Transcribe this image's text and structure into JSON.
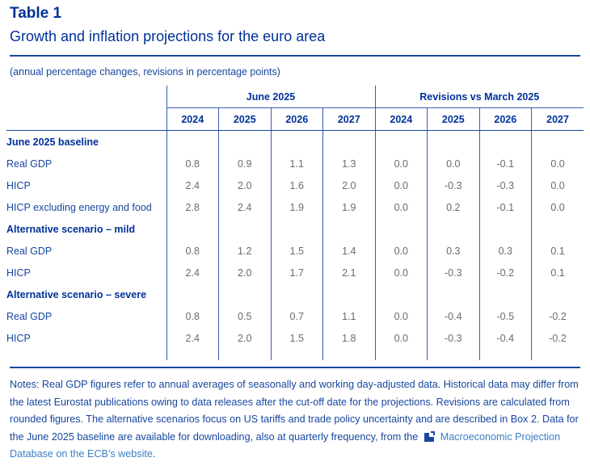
{
  "header": {
    "table_number": "Table 1",
    "title": "Growth and inflation projections for the euro area",
    "units": "(annual percentage changes, revisions in percentage points)"
  },
  "table": {
    "groups": [
      "June 2025",
      "Revisions vs March 2025"
    ],
    "years": [
      "2024",
      "2025",
      "2026",
      "2027",
      "2024",
      "2025",
      "2026",
      "2027"
    ],
    "sections": [
      {
        "title": "June 2025 baseline",
        "rows": [
          {
            "label": "Real GDP",
            "values": [
              "0.8",
              "0.9",
              "1.1",
              "1.3",
              "0.0",
              "0.0",
              "-0.1",
              "0.0"
            ]
          },
          {
            "label": "HICP",
            "values": [
              "2.4",
              "2.0",
              "1.6",
              "2.0",
              "0.0",
              "-0.3",
              "-0.3",
              "0.0"
            ]
          },
          {
            "label": "HICP excluding energy and food",
            "values": [
              "2.8",
              "2.4",
              "1.9",
              "1.9",
              "0.0",
              "0.2",
              "-0.1",
              "0.0"
            ]
          }
        ]
      },
      {
        "title": "Alternative scenario – mild",
        "rows": [
          {
            "label": "Real GDP",
            "values": [
              "0.8",
              "1.2",
              "1.5",
              "1.4",
              "0.0",
              "0.3",
              "0.3",
              "0.1"
            ]
          },
          {
            "label": "HICP",
            "values": [
              "2.4",
              "2.0",
              "1.7",
              "2.1",
              "0.0",
              "-0.3",
              "-0.2",
              "0.1"
            ]
          }
        ]
      },
      {
        "title": "Alternative scenario – severe",
        "rows": [
          {
            "label": "Real GDP",
            "values": [
              "0.8",
              "0.5",
              "0.7",
              "1.1",
              "0.0",
              "-0.4",
              "-0.5",
              "-0.2"
            ]
          },
          {
            "label": "HICP",
            "values": [
              "2.4",
              "2.0",
              "1.5",
              "1.8",
              "0.0",
              "-0.3",
              "-0.4",
              "-0.2"
            ]
          }
        ]
      }
    ]
  },
  "notes": {
    "text": "Notes: Real GDP figures refer to annual averages of seasonally and working day-adjusted data. Historical data may differ from the latest Eurostat publications owing to data releases after the cut-off date for the projections. Revisions are calculated from rounded figures. The alternative scenarios focus on US tariffs and trade policy uncertainty and are described in Box 2. Data for the June 2025 baseline are available for downloading, also at quarterly frequency, from the",
    "link_icon": "external-link-icon",
    "link_text": "Macroeconomic Projection Database on the ECB’s website",
    "end": "."
  },
  "colors": {
    "heading": "#003299",
    "text": "#17469e",
    "values": "#6b6b6b",
    "link": "#3b7fc4"
  }
}
